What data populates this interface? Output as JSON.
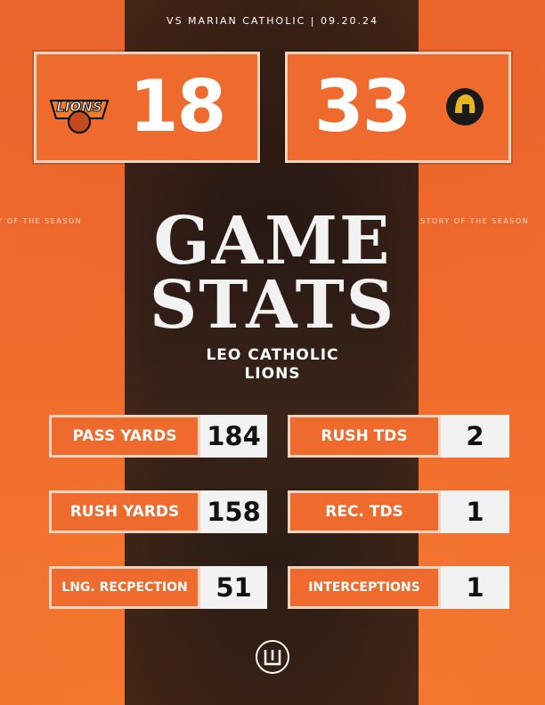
{
  "header": {
    "matchup": "VS MARIAN CATHOLIC |  09.20.24"
  },
  "scoreboard": {
    "home": {
      "logo_text": "LIONS",
      "score": 18
    },
    "away": {
      "score": 33
    }
  },
  "ticker": "STORY OF THE SEASON",
  "title": {
    "line1": "GAME",
    "line2": "STATS"
  },
  "team": {
    "line1": "LEO CATHOLIC",
    "line2": "LIONS"
  },
  "stats": [
    {
      "label": "PASS YARDS",
      "value": 184
    },
    {
      "label": "RUSH TDS",
      "value": 2
    },
    {
      "label": "RUSH YARDS",
      "value": 158
    },
    {
      "label": "REC. TDS",
      "value": 1
    },
    {
      "label": "LNG. RECPECTION",
      "value": 51
    },
    {
      "label": "INTERCEPTIONS",
      "value": 1
    }
  ]
}
